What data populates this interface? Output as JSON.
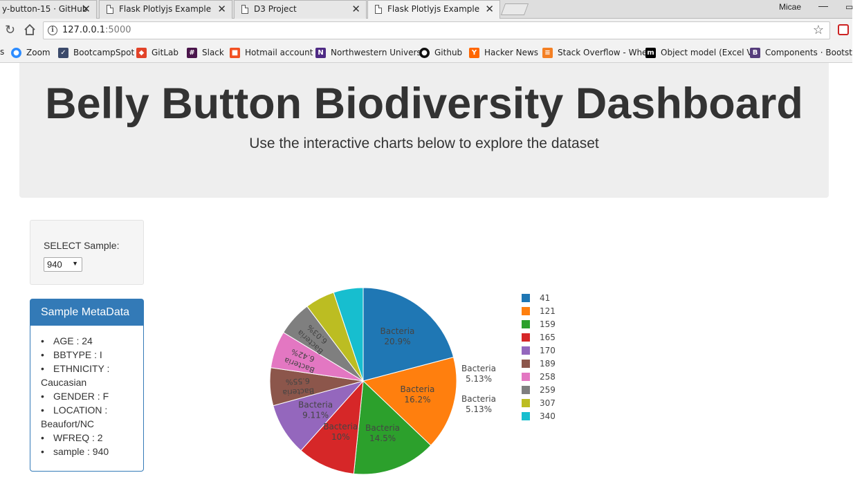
{
  "browser": {
    "tabs": [
      {
        "title": "y-button-15 · GitHub",
        "active": false
      },
      {
        "title": "Flask Plotlyjs Example",
        "active": false
      },
      {
        "title": "D3 Project",
        "active": false
      },
      {
        "title": "Flask Plotlyjs Example",
        "active": true
      }
    ],
    "tab_close": "✕",
    "profile": "Micae",
    "address": {
      "host": "127.0.0.1",
      "port": ":5000"
    },
    "bookmarks": [
      {
        "label": "Zoom",
        "icon": "zoom-icon",
        "color": "#2d8cff"
      },
      {
        "label": "BootcampSpot",
        "icon": "bootcampspot-icon",
        "color": "#3b4a6b"
      },
      {
        "label": "GitLab",
        "icon": "gitlab-icon",
        "color": "#e24329"
      },
      {
        "label": "Slack",
        "icon": "slack-icon",
        "color": "#4a154b"
      },
      {
        "label": "Hotmail account",
        "icon": "microsoft-icon",
        "color": "#f25022"
      },
      {
        "label": "Northwestern Univers",
        "icon": "northwestern-icon",
        "color": "#4e2a84"
      },
      {
        "label": "Github",
        "icon": "github-icon",
        "color": "#111111"
      },
      {
        "label": "Hacker News",
        "icon": "hackernews-icon",
        "color": "#ff6600"
      },
      {
        "label": "Stack Overflow - Whe",
        "icon": "stackoverflow-icon",
        "color": "#f48024"
      },
      {
        "label": "Object model (Excel V",
        "icon": "m-icon",
        "color": "#000000"
      },
      {
        "label": "Components · Bootst",
        "icon": "bootstrap-icon",
        "color": "#563d7c"
      }
    ]
  },
  "page": {
    "title": "Belly Button Biodiversity Dashboard",
    "subtitle": "Use the interactive charts below to explore the dataset",
    "select_label": "SELECT Sample:",
    "selected_sample": "940",
    "metadata": {
      "heading": "Sample MetaData",
      "items": [
        "AGE : 24",
        "BBTYPE : I",
        "ETHNICITY : Caucasian",
        "GENDER : F",
        "LOCATION : Beaufort/NC",
        "WFREQ : 2",
        "sample : 940"
      ]
    }
  },
  "chart_data": {
    "type": "pie",
    "categories": [
      "41",
      "121",
      "159",
      "165",
      "170",
      "189",
      "258",
      "259",
      "307",
      "340"
    ],
    "values": [
      20.9,
      16.2,
      14.5,
      10,
      9.11,
      6.55,
      6.42,
      6.03,
      5.13,
      5.13
    ],
    "hover_label": "Bacteria",
    "value_labels": [
      "20.9%",
      "16.2%",
      "14.5%",
      "10%",
      "9.11%",
      "6.55%",
      "6.42%",
      "6.03%",
      "5.13%",
      "5.13%"
    ],
    "colors": [
      "#1f77b4",
      "#ff7f0e",
      "#2ca02c",
      "#d62728",
      "#9467bd",
      "#8c564b",
      "#e377c2",
      "#7f7f7f",
      "#bcbd22",
      "#17becf"
    ],
    "legend_position": "right"
  }
}
